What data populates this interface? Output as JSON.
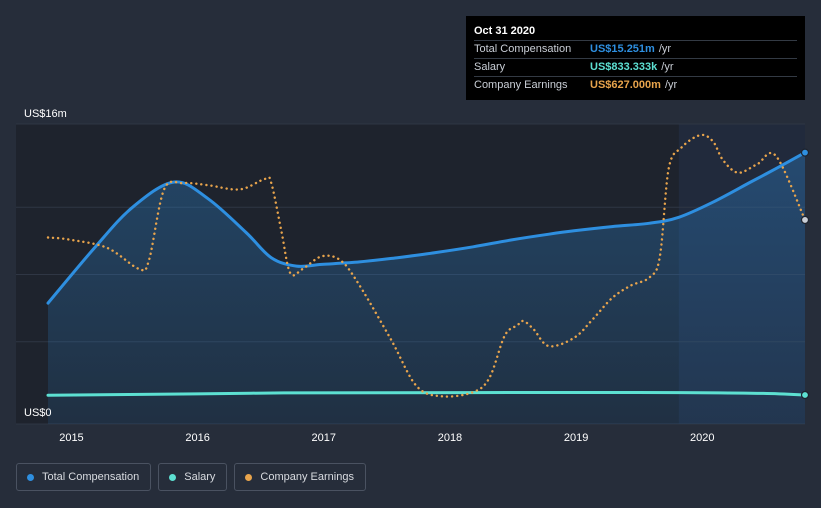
{
  "tooltip": {
    "date": "Oct 31 2020",
    "rows": [
      {
        "label": "Total Compensation",
        "value": "US$15.251m",
        "unit": "/yr",
        "color": "#2e8fe0"
      },
      {
        "label": "Salary",
        "value": "US$833.333k",
        "unit": "/yr",
        "color": "#5de0d2"
      },
      {
        "label": "Company Earnings",
        "value": "US$627.000m",
        "unit": "/yr",
        "color": "#e8a44c"
      }
    ]
  },
  "legend": [
    {
      "label": "Total Compensation",
      "color": "#2e8fe0"
    },
    {
      "label": "Salary",
      "color": "#5de0d2"
    },
    {
      "label": "Company Earnings",
      "color": "#e8a44c"
    }
  ],
  "chart_data": {
    "type": "line",
    "title": "",
    "ylabel": "",
    "xlabel": "",
    "ylim": [
      0,
      16
    ],
    "xlim": [
      2014.83,
      2020.83
    ],
    "y_tick_labels": [
      {
        "value": 16,
        "label": "US$16m"
      },
      {
        "value": 0,
        "label": "US$0"
      }
    ],
    "x_ticks": [
      2015,
      2016,
      2017,
      2018,
      2019,
      2020
    ],
    "x_tick_labels": [
      "2015",
      "2016",
      "2017",
      "2018",
      "2019",
      "2020"
    ],
    "highlight_start": 2019.83,
    "series": [
      {
        "name": "Total Compensation",
        "color": "#2e8fe0",
        "style": "solid",
        "filled": true,
        "x": [
          2014.83,
          2015.2,
          2015.5,
          2015.83,
          2016.1,
          2016.4,
          2016.6,
          2016.8,
          2017.0,
          2017.3,
          2017.6,
          2017.9,
          2018.2,
          2018.5,
          2018.8,
          2019.0,
          2019.3,
          2019.6,
          2019.83,
          2020.1,
          2020.4,
          2020.6,
          2020.83
        ],
        "values": [
          6.3,
          9.6,
          12.0,
          13.5,
          12.5,
          10.5,
          9.0,
          8.5,
          8.6,
          8.75,
          9.0,
          9.3,
          9.65,
          10.05,
          10.4,
          10.6,
          10.85,
          11.05,
          11.4,
          12.3,
          13.5,
          14.3,
          15.251
        ]
      },
      {
        "name": "Salary",
        "color": "#5de0d2",
        "style": "solid",
        "filled": false,
        "x": [
          2014.83,
          2016.0,
          2016.7,
          2017.5,
          2018.5,
          2019.5,
          2020.0,
          2020.5,
          2020.83
        ],
        "values": [
          0.82,
          0.9,
          0.96,
          0.97,
          0.98,
          0.98,
          0.97,
          0.93,
          0.833
        ]
      },
      {
        "name": "Company Earnings",
        "color": "#e8a44c",
        "style": "dotted",
        "filled": false,
        "secondary_axis": true,
        "x": [
          2014.83,
          2015.0,
          2015.3,
          2015.55,
          2015.63,
          2015.75,
          2015.9,
          2016.1,
          2016.35,
          2016.55,
          2016.6,
          2016.68,
          2016.75,
          2016.85,
          2017.0,
          2017.15,
          2017.3,
          2017.55,
          2017.75,
          2017.95,
          2018.2,
          2018.33,
          2018.45,
          2018.55,
          2018.6,
          2018.68,
          2018.8,
          2019.0,
          2019.15,
          2019.3,
          2019.45,
          2019.6,
          2019.68,
          2019.75,
          2019.85,
          2020.0,
          2020.1,
          2020.18,
          2020.3,
          2020.45,
          2020.6,
          2020.83
        ],
        "values": [
          585,
          580,
          560,
          510,
          530,
          700,
          715,
          710,
          700,
          725,
          715,
          600,
          500,
          510,
          540,
          530,
          470,
          340,
          230,
          205,
          215,
          250,
          350,
          375,
          385,
          365,
          325,
          345,
          390,
          440,
          470,
          490,
          540,
          750,
          800,
          830,
          815,
          770,
          740,
          760,
          780,
          627
        ]
      }
    ]
  }
}
